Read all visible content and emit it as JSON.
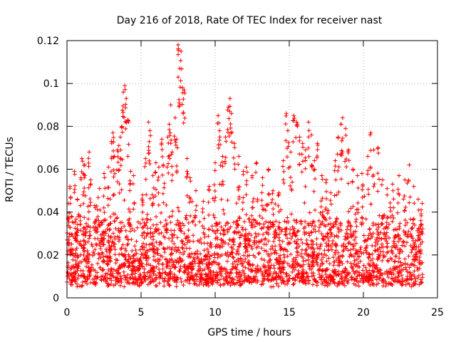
{
  "chart_data": {
    "type": "scatter",
    "title": "Day 216 of 2018, Rate Of TEC Index for receiver nast",
    "xlabel": "GPS time / hours",
    "ylabel": "ROTI / TECUs",
    "xlim": [
      0,
      25
    ],
    "ylim": [
      0,
      0.12
    ],
    "xticks": [
      0,
      5,
      10,
      15,
      20,
      25
    ],
    "xtick_labels": [
      "0",
      "5",
      "10",
      "15",
      "20",
      "25"
    ],
    "yticks": [
      0,
      0.02,
      0.04,
      0.06,
      0.08,
      0.1,
      0.12
    ],
    "ytick_labels": [
      "0",
      "0.02",
      "0.04",
      "0.06",
      "0.08",
      "0.1",
      "0.12"
    ],
    "grid": true,
    "marker": "+",
    "color": "#ff0000",
    "series": [
      {
        "name": "ROTI",
        "points": [
          [
            0.1,
            0.044
          ],
          [
            0.2,
            0.052
          ],
          [
            0.3,
            0.038
          ],
          [
            0.5,
            0.059
          ],
          [
            0.7,
            0.046
          ],
          [
            0.9,
            0.043
          ],
          [
            1.0,
            0.065
          ],
          [
            1.1,
            0.058
          ],
          [
            1.2,
            0.062
          ],
          [
            1.5,
            0.068
          ],
          [
            1.6,
            0.055
          ],
          [
            1.9,
            0.042
          ],
          [
            2.2,
            0.051
          ],
          [
            2.5,
            0.058
          ],
          [
            2.8,
            0.061
          ],
          [
            3.0,
            0.073
          ],
          [
            3.1,
            0.077
          ],
          [
            3.2,
            0.066
          ],
          [
            3.4,
            0.069
          ],
          [
            3.5,
            0.071
          ],
          [
            3.6,
            0.075
          ],
          [
            3.7,
            0.08
          ],
          [
            3.8,
            0.096
          ],
          [
            3.9,
            0.099
          ],
          [
            4.0,
            0.093
          ],
          [
            4.1,
            0.083
          ],
          [
            4.3,
            0.059
          ],
          [
            4.5,
            0.057
          ],
          [
            5.1,
            0.048
          ],
          [
            5.3,
            0.065
          ],
          [
            5.5,
            0.082
          ],
          [
            5.6,
            0.078
          ],
          [
            5.8,
            0.057
          ],
          [
            6.0,
            0.063
          ],
          [
            6.2,
            0.061
          ],
          [
            6.4,
            0.074
          ],
          [
            6.5,
            0.062
          ],
          [
            6.8,
            0.075
          ],
          [
            6.9,
            0.081
          ],
          [
            7.0,
            0.09
          ],
          [
            7.1,
            0.068
          ],
          [
            7.3,
            0.084
          ],
          [
            7.4,
            0.074
          ],
          [
            7.5,
            0.118
          ],
          [
            7.6,
            0.107
          ],
          [
            7.7,
            0.115
          ],
          [
            7.8,
            0.098
          ],
          [
            7.9,
            0.097
          ],
          [
            8.1,
            0.065
          ],
          [
            8.3,
            0.056
          ],
          [
            8.7,
            0.05
          ],
          [
            9.2,
            0.045
          ],
          [
            9.6,
            0.052
          ],
          [
            10.0,
            0.063
          ],
          [
            10.2,
            0.085
          ],
          [
            10.3,
            0.078
          ],
          [
            10.5,
            0.066
          ],
          [
            10.7,
            0.075
          ],
          [
            10.9,
            0.089
          ],
          [
            11.0,
            0.093
          ],
          [
            11.1,
            0.086
          ],
          [
            11.3,
            0.072
          ],
          [
            11.6,
            0.066
          ],
          [
            11.9,
            0.059
          ],
          [
            12.1,
            0.061
          ],
          [
            12.5,
            0.057
          ],
          [
            12.8,
            0.063
          ],
          [
            13.2,
            0.056
          ],
          [
            13.6,
            0.06
          ],
          [
            13.9,
            0.05
          ],
          [
            14.3,
            0.049
          ],
          [
            14.6,
            0.064
          ],
          [
            14.8,
            0.086
          ],
          [
            14.9,
            0.078
          ],
          [
            15.1,
            0.068
          ],
          [
            15.3,
            0.085
          ],
          [
            15.5,
            0.082
          ],
          [
            15.7,
            0.075
          ],
          [
            15.9,
            0.072
          ],
          [
            16.1,
            0.069
          ],
          [
            16.3,
            0.082
          ],
          [
            16.5,
            0.076
          ],
          [
            16.7,
            0.064
          ],
          [
            16.9,
            0.072
          ],
          [
            17.2,
            0.057
          ],
          [
            17.5,
            0.055
          ],
          [
            17.8,
            0.049
          ],
          [
            18.1,
            0.064
          ],
          [
            18.3,
            0.075
          ],
          [
            18.5,
            0.081
          ],
          [
            18.6,
            0.084
          ],
          [
            18.8,
            0.079
          ],
          [
            19.0,
            0.069
          ],
          [
            19.3,
            0.06
          ],
          [
            19.6,
            0.057
          ],
          [
            19.9,
            0.058
          ],
          [
            20.3,
            0.066
          ],
          [
            20.5,
            0.077
          ],
          [
            20.7,
            0.069
          ],
          [
            21.0,
            0.07
          ],
          [
            21.3,
            0.055
          ],
          [
            21.6,
            0.051
          ],
          [
            22.0,
            0.05
          ],
          [
            22.4,
            0.057
          ],
          [
            22.8,
            0.055
          ],
          [
            23.1,
            0.062
          ],
          [
            23.4,
            0.052
          ],
          [
            23.7,
            0.046
          ],
          [
            23.9,
            0.041
          ]
        ]
      }
    ],
    "dense_band": {
      "x_range": [
        0,
        24
      ],
      "y_floor": 0.005,
      "y_typical_max": 0.035,
      "samples": 2600
    }
  }
}
